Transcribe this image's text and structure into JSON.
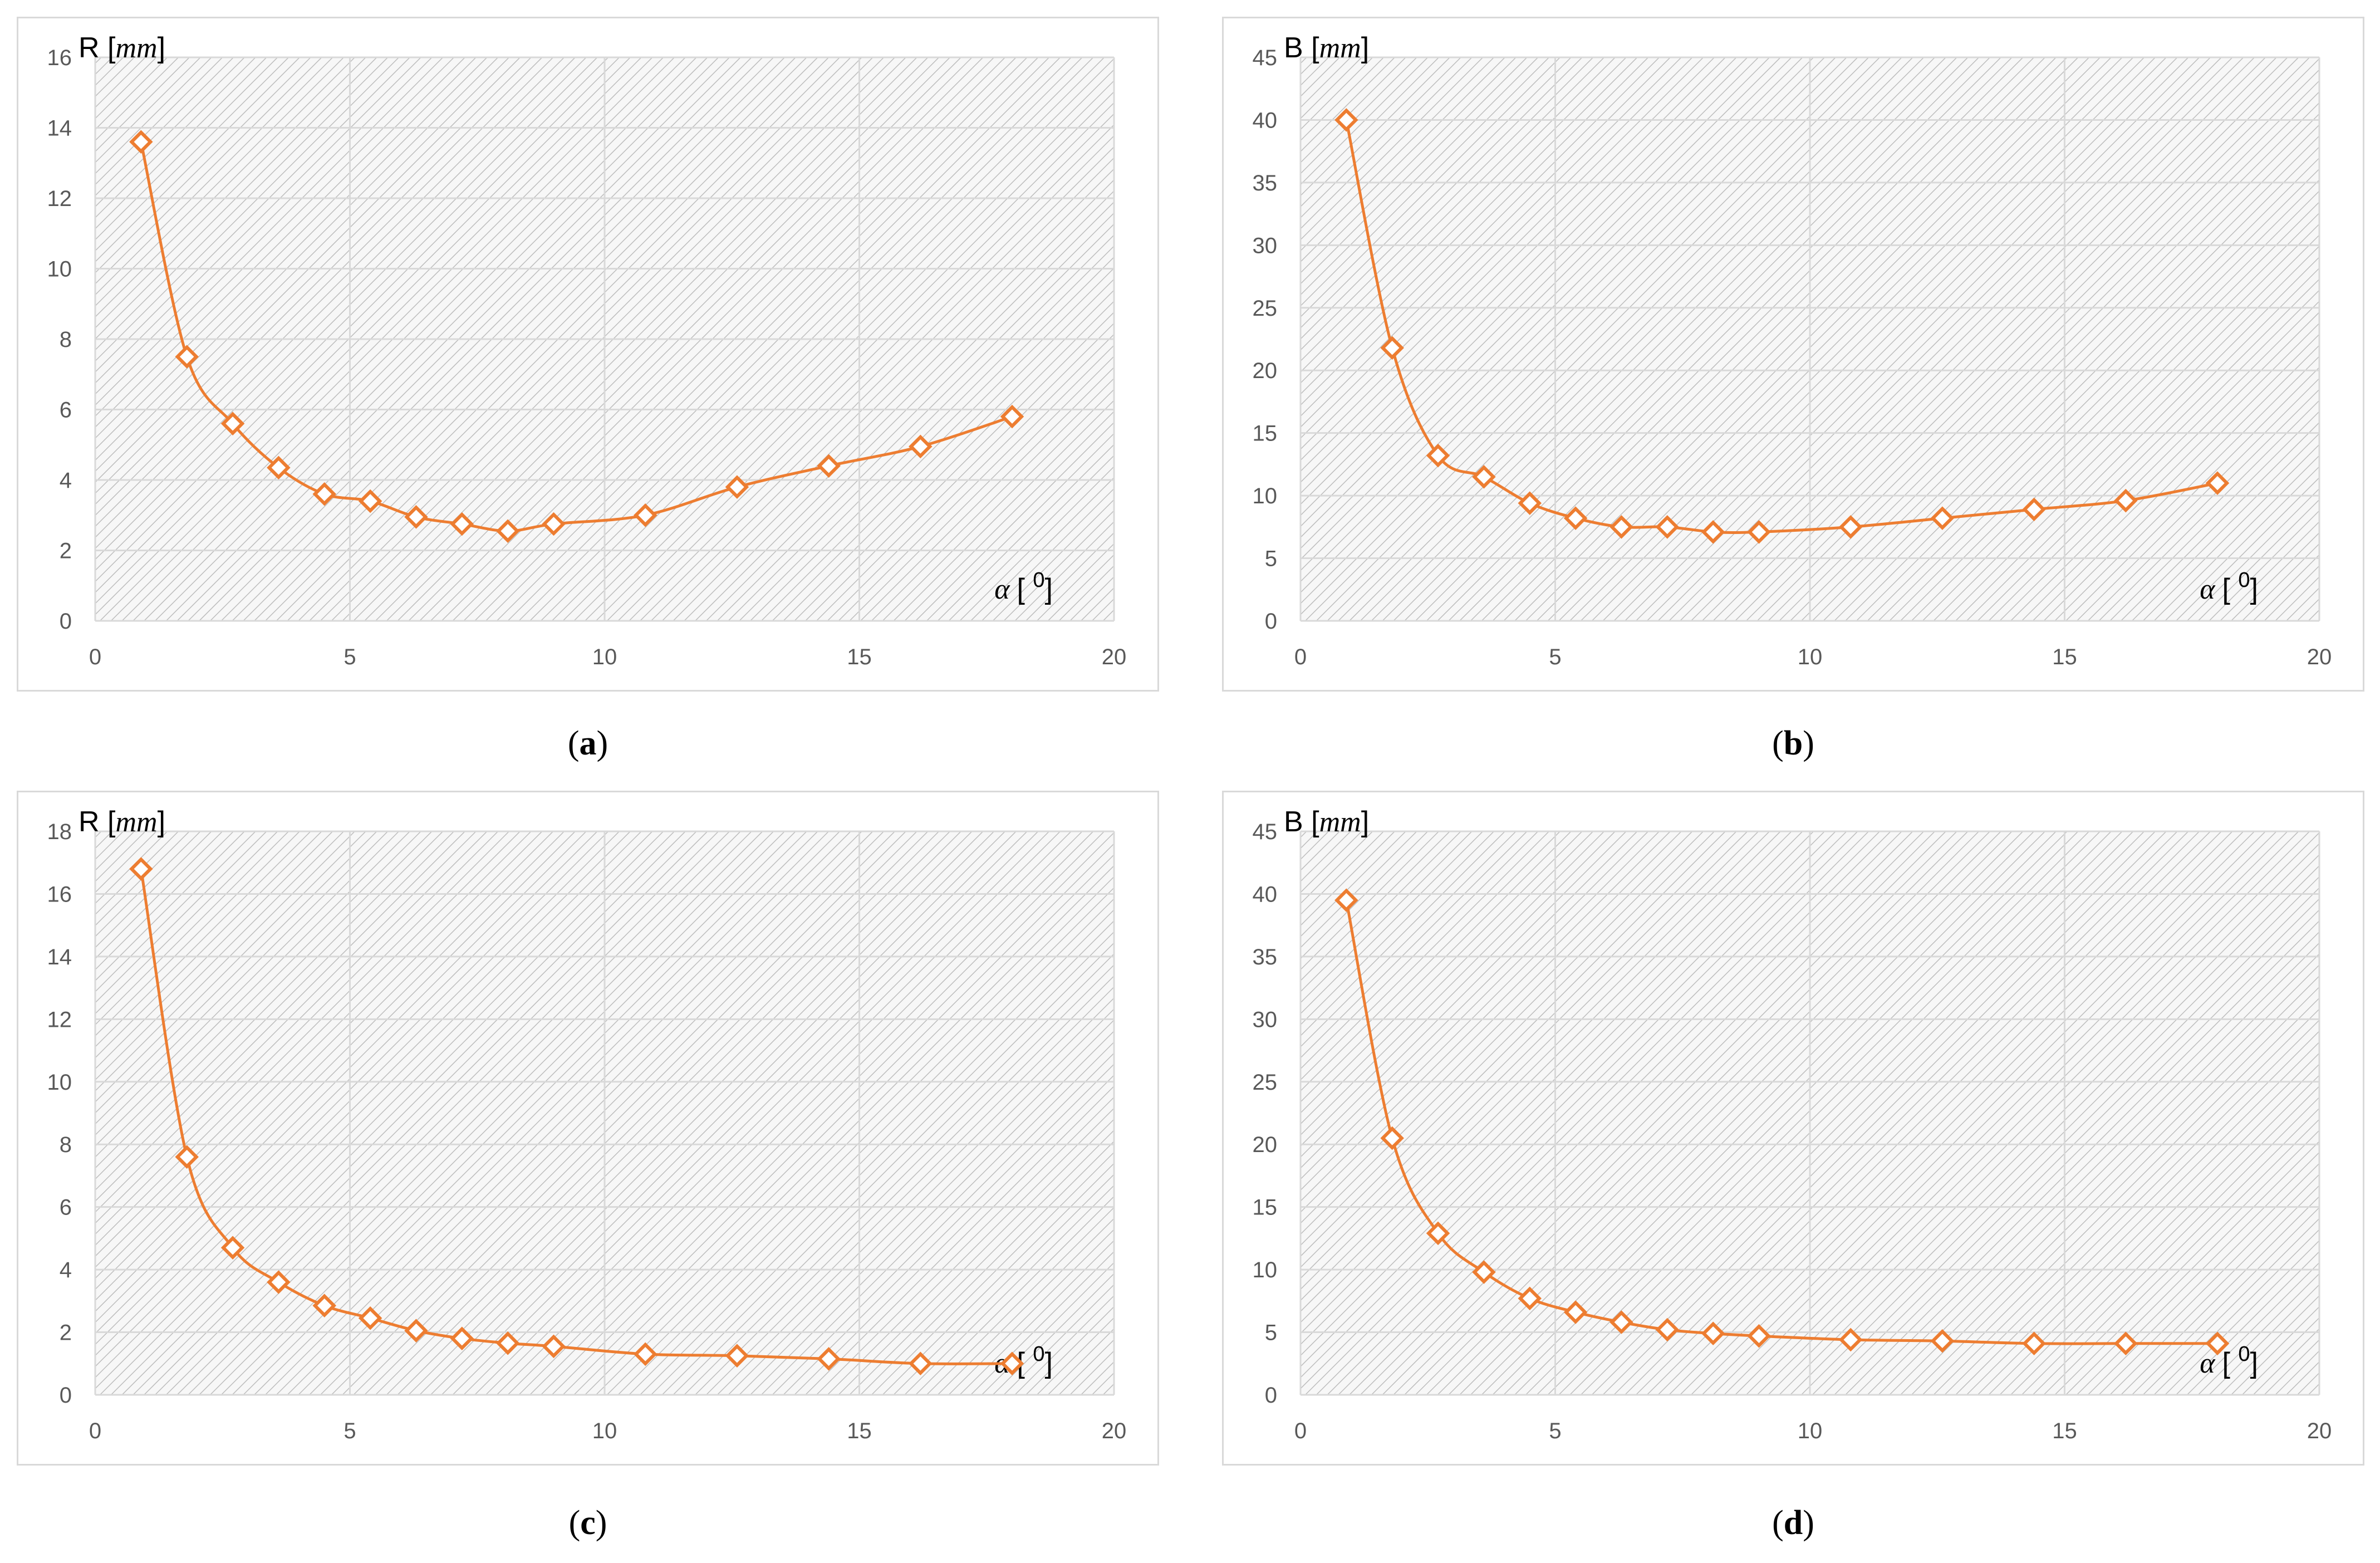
{
  "series_color": "#ed7d31",
  "chart_data": [
    {
      "type": "line",
      "panel_label": "a",
      "ylabel_var": "R",
      "ylabel_unit": "mm",
      "xlabel_var": "α",
      "xlabel_unit": "0",
      "xlim": [
        0,
        20
      ],
      "ylim": [
        0,
        16
      ],
      "xticks": [
        0,
        5,
        10,
        15,
        20
      ],
      "yticks": [
        0,
        2,
        4,
        6,
        8,
        10,
        12,
        14,
        16
      ],
      "x": [
        0.9,
        1.8,
        2.7,
        3.6,
        4.5,
        5.4,
        6.3,
        7.2,
        8.1,
        9.0,
        10.8,
        12.6,
        14.4,
        16.2,
        18.0
      ],
      "y": [
        13.6,
        7.5,
        5.6,
        4.35,
        3.6,
        3.4,
        2.95,
        2.75,
        2.55,
        2.75,
        3.0,
        3.8,
        4.4,
        4.95,
        5.8
      ]
    },
    {
      "type": "line",
      "panel_label": "b",
      "ylabel_var": "B",
      "ylabel_unit": "mm",
      "xlabel_var": "α",
      "xlabel_unit": "0",
      "xlim": [
        0,
        20
      ],
      "ylim": [
        0,
        45
      ],
      "xticks": [
        0,
        5,
        10,
        15,
        20
      ],
      "yticks": [
        0,
        5,
        10,
        15,
        20,
        25,
        30,
        35,
        40,
        45
      ],
      "x": [
        0.9,
        1.8,
        2.7,
        3.6,
        4.5,
        5.4,
        6.3,
        7.2,
        8.1,
        9.0,
        10.8,
        12.6,
        14.4,
        16.2,
        18.0
      ],
      "y": [
        40.0,
        21.8,
        13.2,
        11.5,
        9.4,
        8.2,
        7.5,
        7.5,
        7.1,
        7.1,
        7.5,
        8.2,
        8.9,
        9.6,
        11.0
      ]
    },
    {
      "type": "line",
      "panel_label": "c",
      "ylabel_var": "R",
      "ylabel_unit": "mm",
      "xlabel_var": "α",
      "xlabel_unit": "0",
      "xlim": [
        0,
        20
      ],
      "ylim": [
        0,
        18
      ],
      "xticks": [
        0,
        5,
        10,
        15,
        20
      ],
      "yticks": [
        0,
        2,
        4,
        6,
        8,
        10,
        12,
        14,
        16,
        18
      ],
      "x": [
        0.9,
        1.8,
        2.7,
        3.6,
        4.5,
        5.4,
        6.3,
        7.2,
        8.1,
        9.0,
        10.8,
        12.6,
        14.4,
        16.2,
        18.0
      ],
      "y": [
        16.8,
        7.6,
        4.7,
        3.6,
        2.85,
        2.45,
        2.05,
        1.8,
        1.65,
        1.55,
        1.3,
        1.25,
        1.15,
        1.0,
        1.0
      ]
    },
    {
      "type": "line",
      "panel_label": "d",
      "ylabel_var": "B",
      "ylabel_unit": "mm",
      "xlabel_var": "α",
      "xlabel_unit": "0",
      "xlim": [
        0,
        20
      ],
      "ylim": [
        0,
        45
      ],
      "xticks": [
        0,
        5,
        10,
        15,
        20
      ],
      "yticks": [
        0,
        5,
        10,
        15,
        20,
        25,
        30,
        35,
        40,
        45
      ],
      "x": [
        0.9,
        1.8,
        2.7,
        3.6,
        4.5,
        5.4,
        6.3,
        7.2,
        8.1,
        9.0,
        10.8,
        12.6,
        14.4,
        16.2,
        18.0
      ],
      "y": [
        39.5,
        20.5,
        12.9,
        9.8,
        7.7,
        6.6,
        5.8,
        5.2,
        4.9,
        4.7,
        4.4,
        4.3,
        4.1,
        4.1,
        4.1
      ]
    }
  ]
}
